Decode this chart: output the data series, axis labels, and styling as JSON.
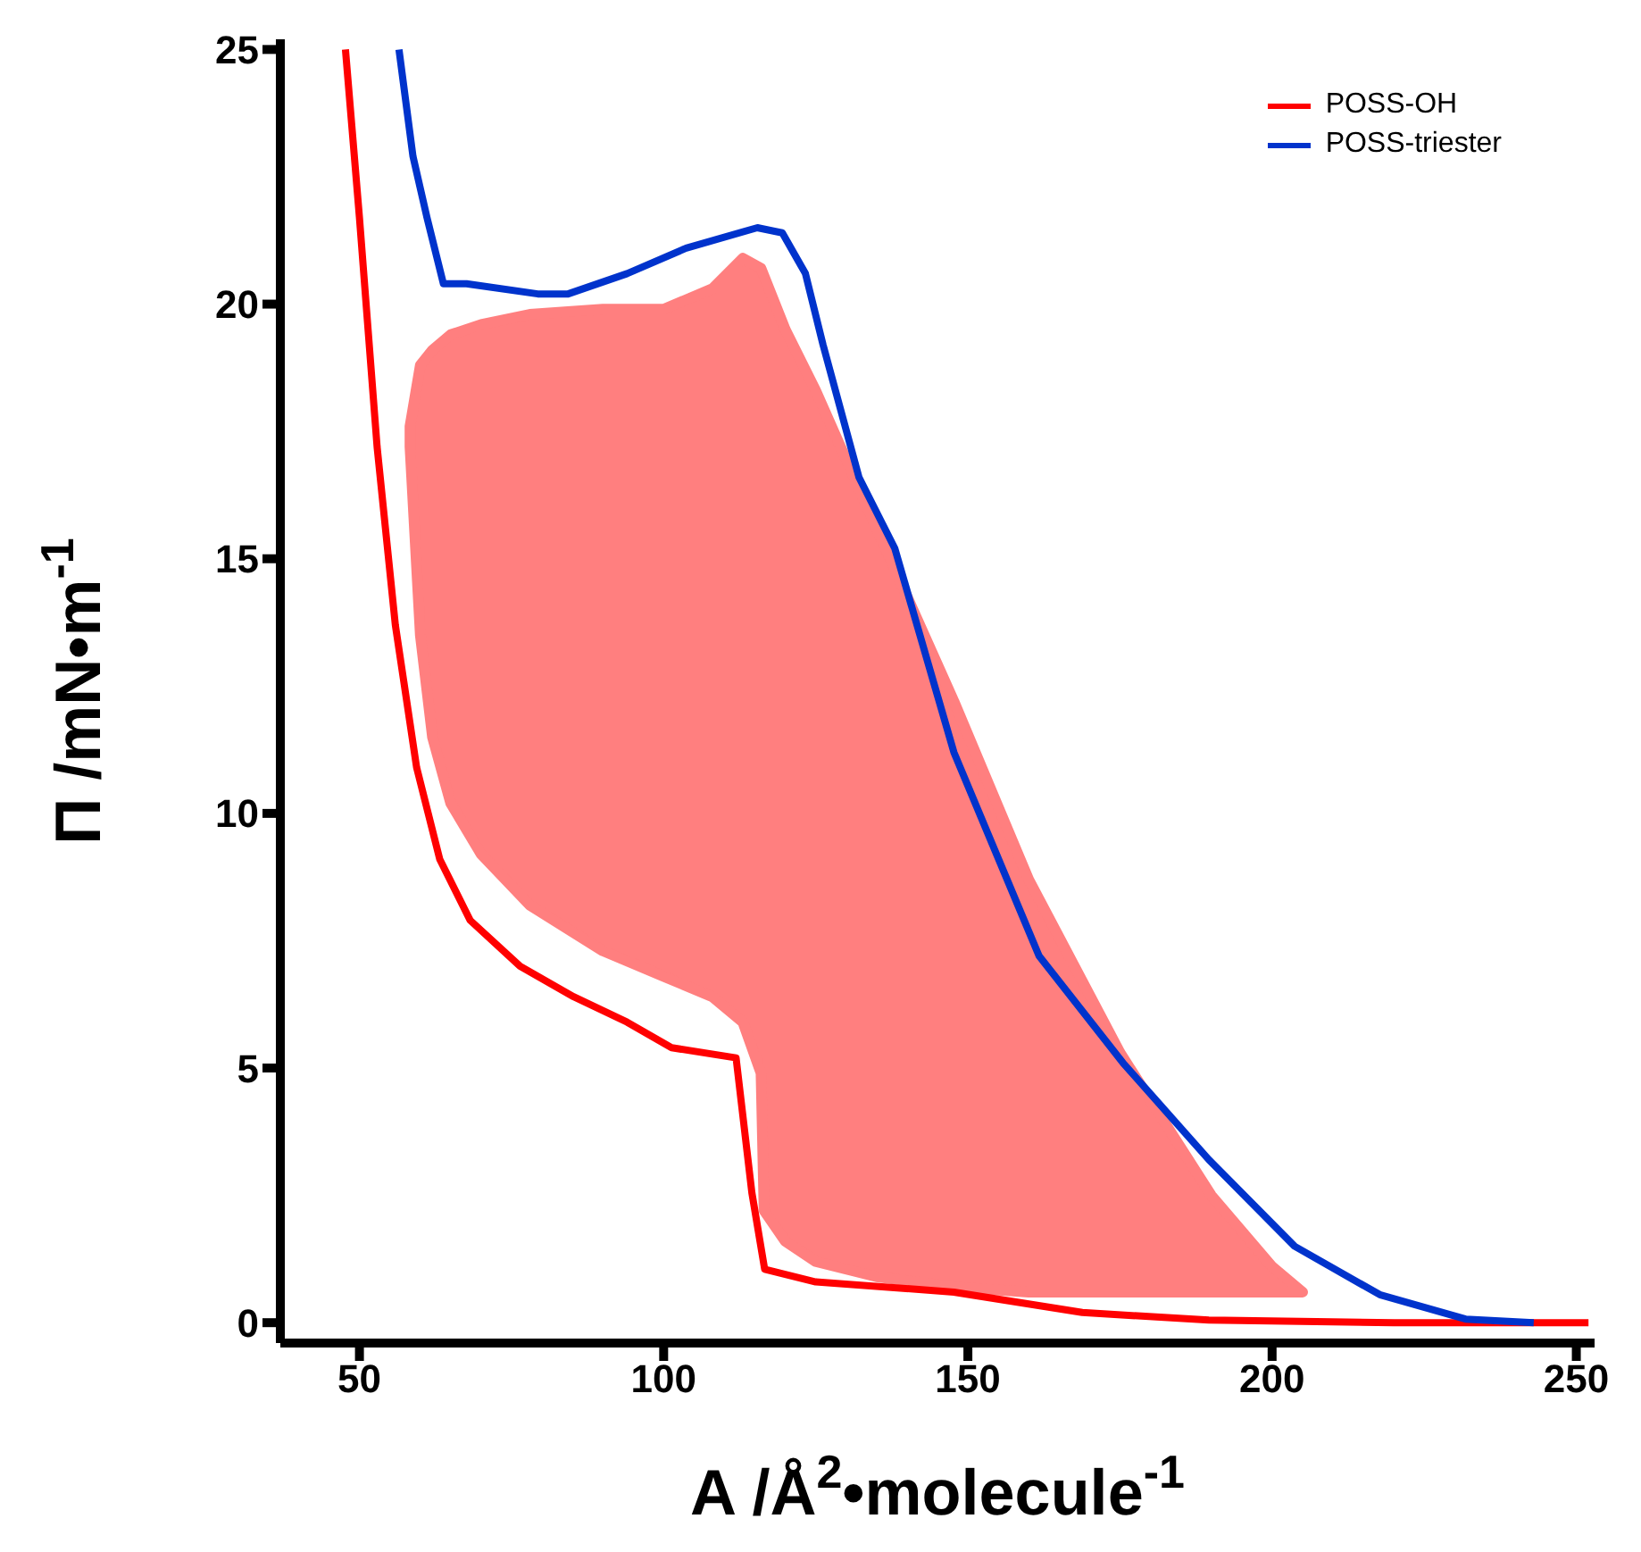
{
  "chart_data": {
    "type": "line",
    "xlabel": "A /Å$^{2}$•molecule$^{-1}$",
    "ylabel": "Π /mN•m$^{-1}$",
    "xlim": [
      37,
      253
    ],
    "ylim": [
      -0.4,
      25.2
    ],
    "xticks": [
      50,
      100,
      150,
      200,
      250
    ],
    "yticks": [
      0,
      5,
      10,
      15,
      20,
      25
    ],
    "legend": "top right",
    "series": [
      {
        "name": "POSS-OH",
        "color": "#ff0000",
        "x": [
          47.7,
          50,
          52.9,
          55.9,
          59.4,
          63.2,
          68.2,
          76.4,
          85.2,
          94,
          101.3,
          111.9,
          114.5,
          116.6,
          125,
          147.7,
          168.8,
          189.6,
          220,
          252
        ],
        "values": [
          25,
          21.7,
          17.2,
          13.7,
          10.9,
          9.1,
          7.9,
          7,
          6.4,
          5.9,
          5.4,
          5.2,
          2.55,
          1.05,
          0.8,
          0.6,
          0.2,
          0.05,
          0,
          0
        ]
      },
      {
        "name": "POSS-triester",
        "color": "#0033cc",
        "x": [
          56.5,
          58.8,
          61.1,
          63.8,
          67.6,
          79.3,
          84.3,
          94,
          103.7,
          115.4,
          119.5,
          123.3,
          126.2,
          132.1,
          138,
          147.7,
          161.7,
          175.5,
          189.6,
          203.7,
          217.7,
          231.8,
          243
        ],
        "values": [
          25,
          22.9,
          21.7,
          20.4,
          20.4,
          20.2,
          20.2,
          20.6,
          21.1,
          21.5,
          21.4,
          20.6,
          19.2,
          16.6,
          15.2,
          11.2,
          7.2,
          5.1,
          3.2,
          1.5,
          0.55,
          0.07,
          0
        ]
      }
    ]
  }
}
